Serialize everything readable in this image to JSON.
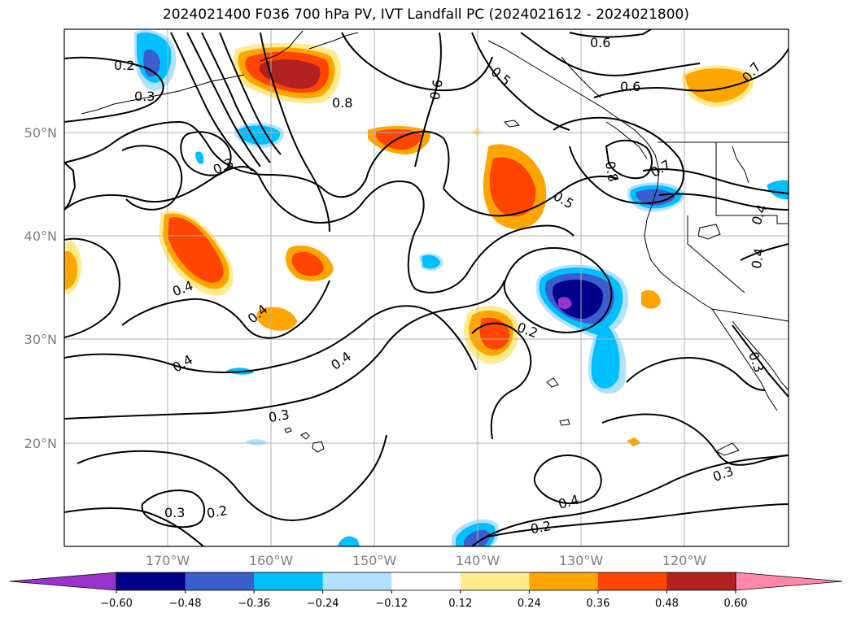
{
  "title": "2024021400 F036 700 hPa PV, IVT Landfall PC (2024021612 - 2024021800)",
  "map": {
    "lat_labels": [
      "50°N",
      "40°N",
      "30°N",
      "20°N"
    ],
    "lon_labels": [
      "170°W",
      "160°W",
      "150°W",
      "140°W",
      "130°W",
      "120°W"
    ],
    "contour_labels": [
      "0.2",
      "0.3",
      "0.8",
      "0.6",
      "0.5",
      "0.6",
      "0.6",
      "0.7",
      "0.3",
      "0.8",
      "0.7",
      "0.5",
      "0.4",
      "0.4",
      "0.4",
      "0.4",
      "0.2",
      "0.4",
      "0.3",
      "0.3",
      "0.4",
      "0.3",
      "0.2",
      "0.3",
      "0.2",
      "0.4"
    ]
  },
  "colorbar": {
    "ticks": [
      "−0.60",
      "−0.48",
      "−0.36",
      "−0.24",
      "−0.12",
      "0.12",
      "0.24",
      "0.36",
      "0.48",
      "0.60"
    ],
    "colors": [
      "#9933cc",
      "#00008b",
      "#3a5fcd",
      "#00bfff",
      "#b0e2ff",
      "#ffffff",
      "#ffeb8c",
      "#ffa500",
      "#ff4500",
      "#b22222",
      "#ff88aa",
      "#ff88aa"
    ]
  }
}
